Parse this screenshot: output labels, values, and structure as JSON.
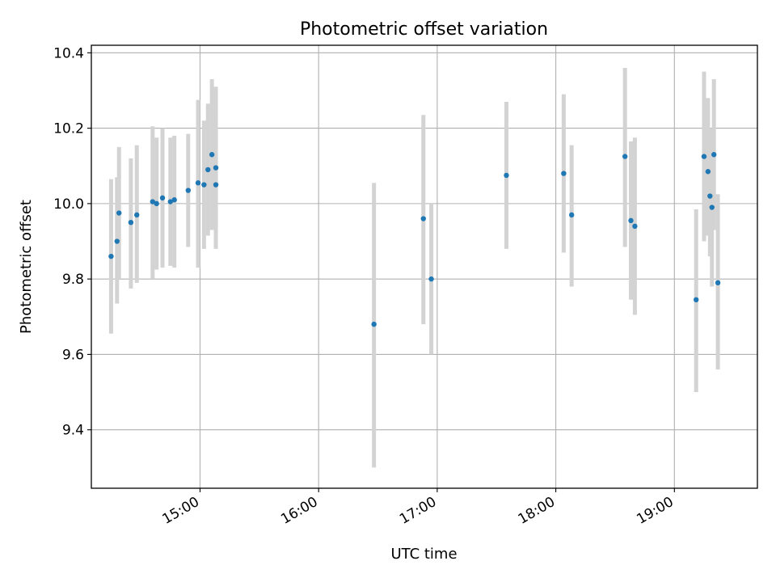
{
  "chart_data": {
    "type": "scatter",
    "title": "Photometric offset variation",
    "xlabel": "UTC time",
    "ylabel": "Photometric offset",
    "grid": true,
    "xlim": [
      "14:05",
      "19:42"
    ],
    "ylim": [
      9.245,
      10.42
    ],
    "xticks": [
      "15:00",
      "16:00",
      "17:00",
      "18:00",
      "19:00"
    ],
    "yticks": [
      9.4,
      9.6,
      9.8,
      10.0,
      10.2,
      10.4
    ],
    "ytick_labels": [
      "9.4",
      "9.6",
      "9.8",
      "10.0",
      "10.2",
      "10.4"
    ],
    "marker_color": "#1f77b4",
    "errorbar_color": "#d3d3d3",
    "points": [
      {
        "t": "14:15",
        "y": 9.86,
        "lo": 9.655,
        "hi": 10.065
      },
      {
        "t": "14:18",
        "y": 9.9,
        "lo": 9.735,
        "hi": 10.07
      },
      {
        "t": "14:19",
        "y": 9.975,
        "lo": 9.8,
        "hi": 10.15
      },
      {
        "t": "14:25",
        "y": 9.95,
        "lo": 9.775,
        "hi": 10.12
      },
      {
        "t": "14:28",
        "y": 9.97,
        "lo": 9.79,
        "hi": 10.155
      },
      {
        "t": "14:36",
        "y": 10.005,
        "lo": 9.8,
        "hi": 10.205
      },
      {
        "t": "14:38",
        "y": 10.0,
        "lo": 9.825,
        "hi": 10.175
      },
      {
        "t": "14:41",
        "y": 10.015,
        "lo": 9.83,
        "hi": 10.2
      },
      {
        "t": "14:45",
        "y": 10.005,
        "lo": 9.835,
        "hi": 10.175
      },
      {
        "t": "14:47",
        "y": 10.01,
        "lo": 9.83,
        "hi": 10.18
      },
      {
        "t": "14:54",
        "y": 10.035,
        "lo": 9.885,
        "hi": 10.185
      },
      {
        "t": "14:59",
        "y": 10.055,
        "lo": 9.83,
        "hi": 10.275
      },
      {
        "t": "15:02",
        "y": 10.05,
        "lo": 9.88,
        "hi": 10.22
      },
      {
        "t": "15:04",
        "y": 10.09,
        "lo": 9.915,
        "hi": 10.265
      },
      {
        "t": "15:06",
        "y": 10.13,
        "lo": 9.93,
        "hi": 10.33
      },
      {
        "t": "15:08",
        "y": 10.095,
        "lo": 9.885,
        "hi": 10.31
      },
      {
        "t": "15:08",
        "y": 10.05,
        "lo": 9.88,
        "hi": 10.22
      },
      {
        "t": "16:28",
        "y": 9.68,
        "lo": 9.3,
        "hi": 10.055
      },
      {
        "t": "16:53",
        "y": 9.96,
        "lo": 9.68,
        "hi": 10.235
      },
      {
        "t": "16:57",
        "y": 9.8,
        "lo": 9.6,
        "hi": 10.0
      },
      {
        "t": "17:35",
        "y": 10.075,
        "lo": 9.88,
        "hi": 10.27
      },
      {
        "t": "18:04",
        "y": 10.08,
        "lo": 9.87,
        "hi": 10.29
      },
      {
        "t": "18:08",
        "y": 9.97,
        "lo": 9.78,
        "hi": 10.155
      },
      {
        "t": "18:35",
        "y": 10.125,
        "lo": 9.885,
        "hi": 10.36
      },
      {
        "t": "18:38",
        "y": 9.955,
        "lo": 9.745,
        "hi": 10.165
      },
      {
        "t": "18:40",
        "y": 9.94,
        "lo": 9.705,
        "hi": 10.175
      },
      {
        "t": "19:11",
        "y": 9.745,
        "lo": 9.5,
        "hi": 9.985
      },
      {
        "t": "19:15",
        "y": 10.125,
        "lo": 9.9,
        "hi": 10.35
      },
      {
        "t": "19:17",
        "y": 10.085,
        "lo": 9.915,
        "hi": 10.28
      },
      {
        "t": "19:18",
        "y": 10.02,
        "lo": 9.86,
        "hi": 10.195
      },
      {
        "t": "19:19",
        "y": 9.99,
        "lo": 9.78,
        "hi": 10.2
      },
      {
        "t": "19:20",
        "y": 10.13,
        "lo": 9.93,
        "hi": 10.33
      },
      {
        "t": "19:22",
        "y": 9.79,
        "lo": 9.56,
        "hi": 10.025
      }
    ]
  }
}
